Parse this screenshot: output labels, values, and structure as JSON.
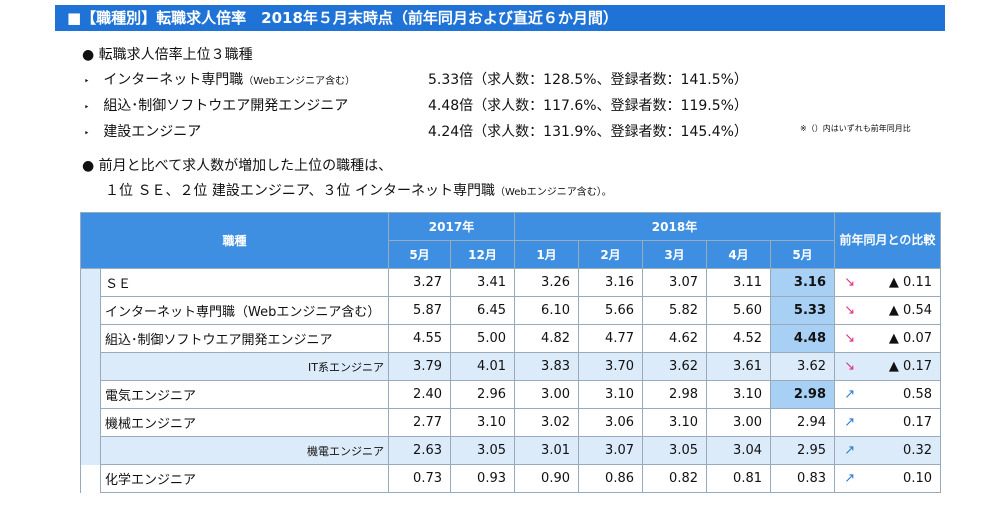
{
  "header": {
    "title": "■【職種別】転職求人倍率　2018年５月末時点（前年同月および直近６か月間）"
  },
  "top3": {
    "heading": "転職求人倍率上位３職種",
    "note": "※（）内はいずれも前年同月比",
    "items": [
      {
        "name": "インターネット専門職",
        "sub": "（Webエンジニア含む）",
        "detail": "5.33倍（求人数：128.5%、登録者数：141.5%）"
      },
      {
        "name": "組込･制御ソフトウエア開発エンジニア",
        "sub": "",
        "detail": "4.48倍（求人数：117.6%、登録者数：119.5%）"
      },
      {
        "name": "建設エンジニア",
        "sub": "",
        "detail": "4.24倍（求人数：131.9%、登録者数：145.4%）"
      }
    ]
  },
  "increase": {
    "heading": "前月と比べて求人数が増加した上位の職種は、",
    "line": "１位 ＳＥ、２位 建設エンジニア、３位 インターネット専門職",
    "sub": "（Webエンジニア含む）。"
  },
  "table": {
    "head_job": "職種",
    "year1": "2017年",
    "year2": "2018年",
    "head_compare": "前年同月との比較",
    "months": [
      "5月",
      "12月",
      "1月",
      "2月",
      "3月",
      "4月",
      "5月"
    ],
    "rows": [
      {
        "name": "ＳＥ",
        "values": [
          "3.27",
          "3.41",
          "3.26",
          "3.16",
          "3.07",
          "3.11",
          "3.16"
        ],
        "trend": "↘",
        "change": "▲ 0.11",
        "highlight": true,
        "group": true
      },
      {
        "name": "インターネット専門職（Webエンジニア含む）",
        "values": [
          "5.87",
          "6.45",
          "6.10",
          "5.66",
          "5.82",
          "5.60",
          "5.33"
        ],
        "trend": "↘",
        "change": "▲ 0.54",
        "highlight": true,
        "group": true
      },
      {
        "name": "組込･制御ソフトウエア開発エンジニア",
        "values": [
          "4.55",
          "5.00",
          "4.82",
          "4.77",
          "4.62",
          "4.52",
          "4.48"
        ],
        "trend": "↘",
        "change": "▲ 0.07",
        "highlight": true,
        "group": true
      },
      {
        "name": "IT系エンジニア",
        "values": [
          "3.79",
          "4.01",
          "3.83",
          "3.70",
          "3.62",
          "3.61",
          "3.62"
        ],
        "trend": "↘",
        "change": "▲ 0.17",
        "subtotal": true,
        "group": true
      },
      {
        "name": "電気エンジニア",
        "values": [
          "2.40",
          "2.96",
          "3.00",
          "3.10",
          "2.98",
          "3.10",
          "2.98"
        ],
        "trend": "↗",
        "change": "0.58",
        "highlight": true,
        "group": true
      },
      {
        "name": "機械エンジニア",
        "values": [
          "2.77",
          "3.10",
          "3.02",
          "3.06",
          "3.10",
          "3.00",
          "2.94"
        ],
        "trend": "↗",
        "change": "0.17",
        "group": true
      },
      {
        "name": "機電エンジニア",
        "values": [
          "2.63",
          "3.05",
          "3.01",
          "3.07",
          "3.05",
          "3.04",
          "2.95"
        ],
        "trend": "↗",
        "change": "0.32",
        "subtotal": true,
        "group": true
      },
      {
        "name": "化学エンジニア",
        "values": [
          "0.73",
          "0.93",
          "0.90",
          "0.86",
          "0.82",
          "0.81",
          "0.83"
        ],
        "trend": "↗",
        "change": "0.10"
      }
    ]
  }
}
